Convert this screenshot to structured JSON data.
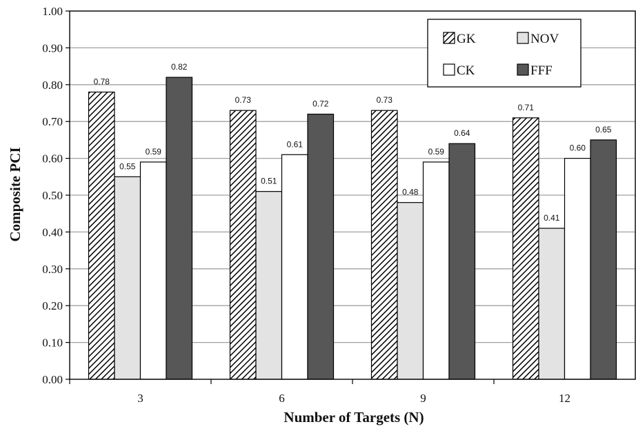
{
  "chart_data": {
    "type": "bar",
    "title": "",
    "xlabel": "Number of Targets (N)",
    "ylabel": "Composite PCI",
    "ylim": [
      0,
      1.0
    ],
    "y_ticks": [
      "0.00",
      "0.10",
      "0.20",
      "0.30",
      "0.40",
      "0.50",
      "0.60",
      "0.70",
      "0.80",
      "0.90",
      "1.00"
    ],
    "categories": [
      "3",
      "6",
      "9",
      "12"
    ],
    "grid": true,
    "legend_position": "top-right",
    "series": [
      {
        "name": "GK",
        "values": [
          0.78,
          0.73,
          0.73,
          0.71
        ],
        "labels": [
          "0.78",
          "0.73",
          "0.73",
          "0.71"
        ],
        "fill": "hatch",
        "color": "#000000"
      },
      {
        "name": "NOV",
        "values": [
          0.55,
          0.51,
          0.48,
          0.41
        ],
        "labels": [
          "0.55",
          "0.51",
          "0.48",
          "0.41"
        ],
        "fill": "solid",
        "color": "#e3e3e3"
      },
      {
        "name": "CK",
        "values": [
          0.59,
          0.61,
          0.59,
          0.6
        ],
        "labels": [
          "0.59",
          "0.61",
          "0.59",
          "0.60"
        ],
        "fill": "solid",
        "color": "#ffffff"
      },
      {
        "name": "FFF",
        "values": [
          0.82,
          0.72,
          0.64,
          0.65
        ],
        "labels": [
          "0.82",
          "0.72",
          "0.64",
          "0.65"
        ],
        "fill": "solid",
        "color": "#575757"
      }
    ]
  }
}
